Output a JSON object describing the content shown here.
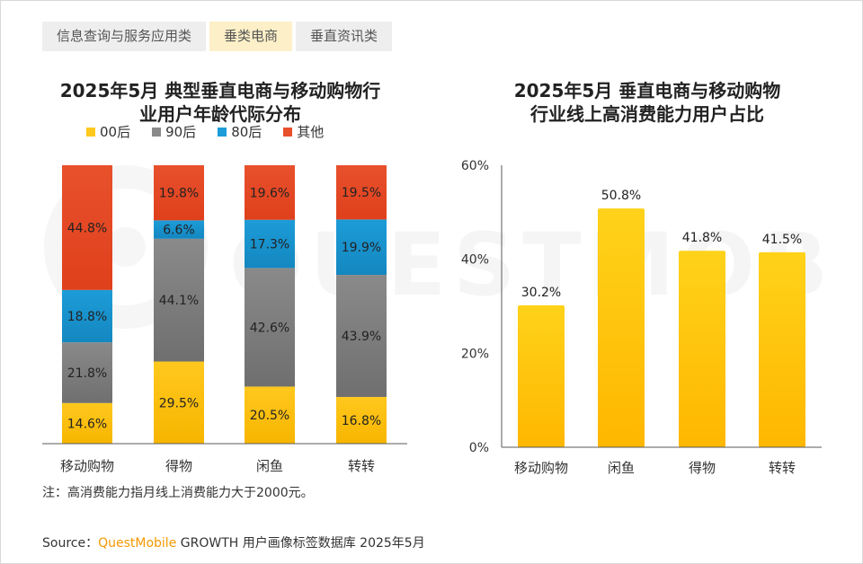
{
  "tabs": [
    {
      "label": "信息查询与服务应用类",
      "active": false
    },
    {
      "label": "垂类电商",
      "active": true
    },
    {
      "label": "垂直资讯类",
      "active": false
    }
  ],
  "watermark_text": "QUESTMOBILE",
  "colors": {
    "s00": "#ffc81e",
    "s90": "#8a8a8a",
    "s80": "#1c9cd8",
    "other": "#e8502c",
    "bar_yellow": "#ffc400",
    "axis": "#595959",
    "brand": "#f39800"
  },
  "chart_data": [
    {
      "type": "bar",
      "stacked": true,
      "percent_stacked": true,
      "title": "2025年5月 典型垂直电商与移动购物行业用户年龄代际分布",
      "title_lines": [
        "2025年5月 典型垂直电商与移动购物行",
        "业用户年龄代际分布"
      ],
      "categories": [
        "移动购物",
        "得物",
        "闲鱼",
        "转转"
      ],
      "series": [
        {
          "name": "00后",
          "values": [
            14.6,
            29.5,
            20.5,
            16.8
          ],
          "labels": [
            "14.6%",
            "29.5%",
            "20.5%",
            "16.8%"
          ]
        },
        {
          "name": "90后",
          "values": [
            21.8,
            44.1,
            42.6,
            43.9
          ],
          "labels": [
            "21.8%",
            "44.1%",
            "42.6%",
            "43.9%"
          ]
        },
        {
          "name": "80后",
          "values": [
            18.8,
            6.6,
            17.3,
            19.9
          ],
          "labels": [
            "18.8%",
            "6.6%",
            "17.3%",
            "19.9%"
          ]
        },
        {
          "name": "其他",
          "values": [
            44.8,
            19.8,
            19.6,
            19.5
          ],
          "labels": [
            "44.8%",
            "19.8%",
            "19.6%",
            "19.5%"
          ]
        }
      ],
      "legend_position": "top",
      "grid": false
    },
    {
      "type": "bar",
      "title": "2025年5月 垂直电商与移动购物行业线上高消费能力用户占比",
      "title_lines": [
        "2025年5月 垂直电商与移动购物",
        "行业线上高消费能力用户占比"
      ],
      "categories": [
        "移动购物",
        "闲鱼",
        "得物",
        "转转"
      ],
      "values": [
        30.2,
        50.8,
        41.8,
        41.5
      ],
      "value_labels": [
        "30.2%",
        "50.8%",
        "41.8%",
        "41.5%"
      ],
      "ylim": [
        0,
        60
      ],
      "yticks": [
        0,
        20,
        40,
        60
      ],
      "ytick_labels": [
        "0%",
        "20%",
        "40%",
        "60%"
      ],
      "grid": false
    }
  ],
  "note": "注：高消费能力指月线上消费能力大于2000元。",
  "source": {
    "prefix": "Source：",
    "brand": "QuestMobile",
    "rest": " GROWTH 用户画像标签数据库 2025年5月"
  }
}
